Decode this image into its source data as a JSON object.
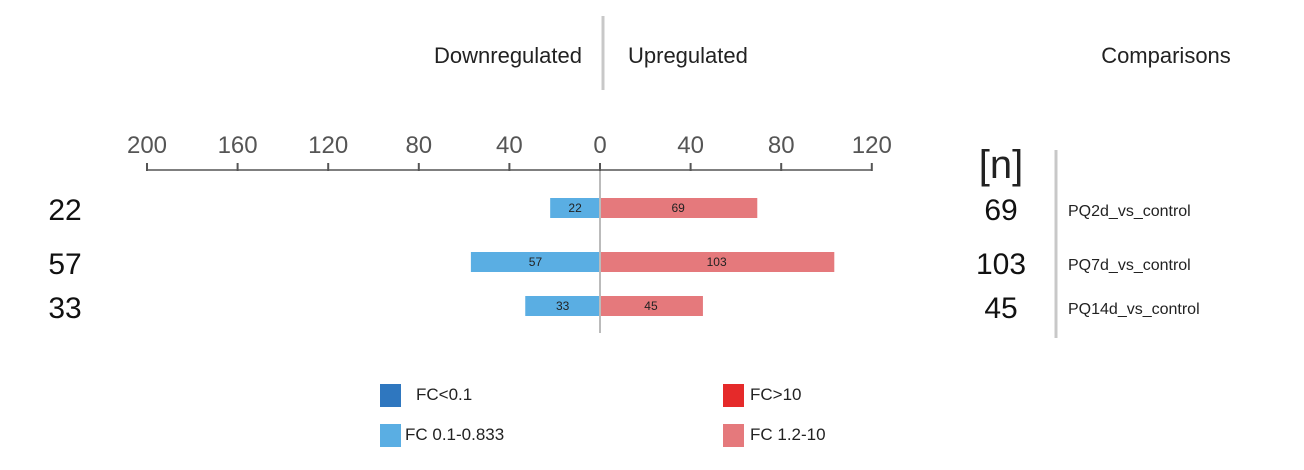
{
  "chart_data": {
    "type": "bar",
    "orientation": "diverging-horizontal",
    "header": {
      "left": "Downregulated",
      "right": "Upregulated",
      "comparisons": "Comparisons",
      "n_label": "[n]"
    },
    "axis": {
      "ticks_left": [
        200,
        160,
        120,
        80,
        40
      ],
      "tick_zero": 0,
      "ticks_right": [
        40,
        80,
        120
      ],
      "range_down": [
        0,
        200
      ],
      "range_up": [
        0,
        120
      ]
    },
    "categories": [
      "PQ2d_vs_control",
      "PQ7d_vs_control",
      "PQ14d_vs_control"
    ],
    "series": [
      {
        "name": "FC 0.1-0.833",
        "direction": "down",
        "color": "#5aaee3",
        "values": [
          22,
          57,
          33
        ]
      },
      {
        "name": "FC 1.2-10",
        "direction": "up",
        "color": "#e5797c",
        "values": [
          69,
          103,
          45
        ]
      }
    ],
    "legend": [
      {
        "label": "FC<0.1",
        "color": "#2f77bf"
      },
      {
        "label": "FC>10",
        "color": "#e52a2a"
      },
      {
        "label": "FC 0.1-0.833",
        "color": "#5aaee3"
      },
      {
        "label": "FC 1.2-10",
        "color": "#e5797c"
      }
    ],
    "legend_placement": "bottom"
  }
}
